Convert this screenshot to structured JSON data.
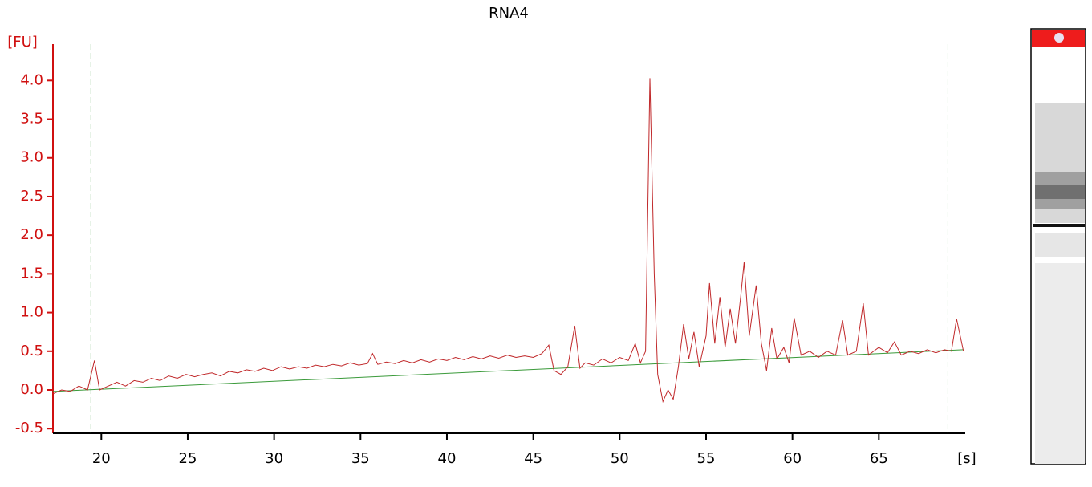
{
  "chart_data": {
    "type": "line",
    "title": "RNA4",
    "ylabel": "[FU]",
    "xlabel": "[s]",
    "xlim": [
      17.2,
      70.0
    ],
    "ylim": [
      -0.56,
      4.47
    ],
    "xticks": [
      20,
      25,
      30,
      35,
      40,
      45,
      50,
      55,
      60,
      65
    ],
    "yticks": [
      -0.5,
      {
        "value": 0,
        "label": "0.0"
      },
      0.5,
      {
        "value": 1,
        "label": "1.0"
      },
      1.5,
      {
        "value": 2,
        "label": "2.0"
      },
      2.5,
      {
        "value": 3,
        "label": "3.0"
      },
      3.5,
      {
        "value": 4,
        "label": "4.0"
      }
    ],
    "markers": [
      19.4,
      69.0
    ],
    "marker_color": "#3a9a3a",
    "baseline": {
      "color": "#3a9a3a",
      "x": [
        17.2,
        69.9
      ],
      "values": [
        -0.02,
        0.52
      ]
    },
    "series": [
      {
        "color": "#c0282a",
        "x": [
          17.2,
          17.7,
          18.2,
          18.7,
          19.2,
          19.6,
          19.9,
          20.4,
          20.9,
          21.4,
          21.9,
          22.4,
          22.9,
          23.4,
          23.9,
          24.4,
          24.9,
          25.4,
          25.9,
          26.4,
          26.9,
          27.4,
          27.9,
          28.4,
          28.9,
          29.4,
          29.9,
          30.4,
          30.9,
          31.4,
          31.9,
          32.4,
          32.9,
          33.4,
          33.9,
          34.4,
          34.9,
          35.4,
          35.7,
          36.0,
          36.5,
          37.0,
          37.5,
          38.0,
          38.5,
          39.0,
          39.5,
          40.0,
          40.5,
          41.0,
          41.5,
          42.0,
          42.5,
          43.0,
          43.5,
          44.0,
          44.5,
          45.0,
          45.5,
          45.9,
          46.2,
          46.6,
          47.0,
          47.4,
          47.7,
          48.0,
          48.5,
          49.0,
          49.5,
          50.0,
          50.5,
          50.9,
          51.2,
          51.5,
          51.75,
          52.0,
          52.2,
          52.5,
          52.8,
          53.1,
          53.4,
          53.7,
          54.0,
          54.3,
          54.6,
          55.0,
          55.2,
          55.5,
          55.8,
          56.1,
          56.4,
          56.7,
          57.0,
          57.2,
          57.5,
          57.9,
          58.2,
          58.5,
          58.8,
          59.1,
          59.5,
          59.8,
          60.1,
          60.5,
          61.0,
          61.5,
          62.0,
          62.5,
          62.9,
          63.2,
          63.7,
          64.1,
          64.4,
          65.0,
          65.5,
          65.9,
          66.3,
          66.8,
          67.3,
          67.8,
          68.3,
          68.8,
          69.2,
          69.5,
          69.9
        ],
        "values": [
          -0.05,
          0.0,
          -0.02,
          0.05,
          0.0,
          0.38,
          0.0,
          0.05,
          0.1,
          0.05,
          0.12,
          0.1,
          0.15,
          0.12,
          0.18,
          0.15,
          0.2,
          0.17,
          0.2,
          0.22,
          0.18,
          0.24,
          0.22,
          0.26,
          0.24,
          0.28,
          0.25,
          0.3,
          0.27,
          0.3,
          0.28,
          0.32,
          0.3,
          0.33,
          0.31,
          0.35,
          0.32,
          0.34,
          0.47,
          0.33,
          0.36,
          0.34,
          0.38,
          0.35,
          0.39,
          0.36,
          0.4,
          0.38,
          0.42,
          0.39,
          0.43,
          0.4,
          0.44,
          0.41,
          0.45,
          0.42,
          0.44,
          0.42,
          0.47,
          0.58,
          0.25,
          0.2,
          0.3,
          0.83,
          0.28,
          0.35,
          0.32,
          0.4,
          0.35,
          0.42,
          0.38,
          0.6,
          0.35,
          0.5,
          4.03,
          1.5,
          0.2,
          -0.15,
          0.0,
          -0.12,
          0.3,
          0.85,
          0.4,
          0.75,
          0.3,
          0.7,
          1.38,
          0.6,
          1.2,
          0.55,
          1.05,
          0.6,
          1.2,
          1.65,
          0.7,
          1.35,
          0.6,
          0.25,
          0.8,
          0.4,
          0.55,
          0.35,
          0.93,
          0.45,
          0.5,
          0.42,
          0.5,
          0.45,
          0.9,
          0.45,
          0.5,
          1.12,
          0.45,
          0.55,
          0.48,
          0.62,
          0.45,
          0.5,
          0.47,
          0.52,
          0.48,
          0.52,
          0.5,
          0.92,
          0.5
        ]
      }
    ]
  }
}
